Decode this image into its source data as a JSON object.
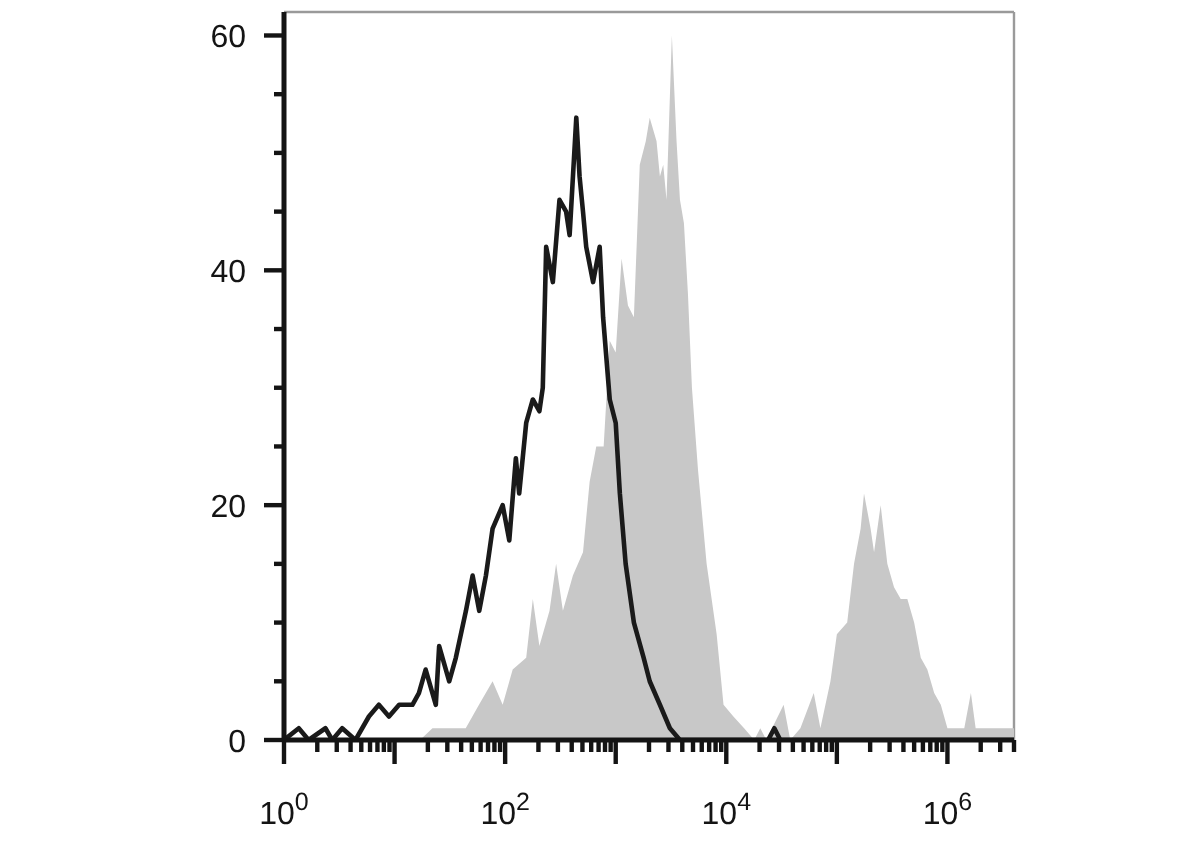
{
  "chart_data": {
    "type": "area",
    "log": "x",
    "xlim": [
      1,
      4000000
    ],
    "ylim": [
      0,
      62
    ],
    "xticks": [
      {
        "value": 1,
        "label": "10$^{0}$"
      },
      {
        "value": 2,
        "label": null
      },
      {
        "value": 3,
        "label": null
      },
      {
        "value": 4,
        "label": null
      },
      {
        "value": 5,
        "label": null
      },
      {
        "value": 6,
        "label": null
      },
      {
        "value": 7,
        "label": null
      },
      {
        "value": 8,
        "label": null
      },
      {
        "value": 9,
        "label": null
      },
      {
        "value": 10,
        "label": null
      },
      {
        "value": 20,
        "label": null
      },
      {
        "value": 30,
        "label": null
      },
      {
        "value": 40,
        "label": null
      },
      {
        "value": 50,
        "label": null
      },
      {
        "value": 60,
        "label": null
      },
      {
        "value": 70,
        "label": null
      },
      {
        "value": 80,
        "label": null
      },
      {
        "value": 90,
        "label": null
      },
      {
        "value": 100,
        "label": "10$^{2}$"
      },
      {
        "value": 200,
        "label": null
      },
      {
        "value": 300,
        "label": null
      },
      {
        "value": 400,
        "label": null
      },
      {
        "value": 500,
        "label": null
      },
      {
        "value": 600,
        "label": null
      },
      {
        "value": 700,
        "label": null
      },
      {
        "value": 800,
        "label": null
      },
      {
        "value": 900,
        "label": null
      },
      {
        "value": 1000,
        "label": null
      },
      {
        "value": 2000,
        "label": null
      },
      {
        "value": 3000,
        "label": null
      },
      {
        "value": 4000,
        "label": null
      },
      {
        "value": 5000,
        "label": null
      },
      {
        "value": 6000,
        "label": null
      },
      {
        "value": 7000,
        "label": null
      },
      {
        "value": 8000,
        "label": null
      },
      {
        "value": 9000,
        "label": null
      },
      {
        "value": 10000,
        "label": "10$^{4}$"
      },
      {
        "value": 20000,
        "label": null
      },
      {
        "value": 30000,
        "label": null
      },
      {
        "value": 40000,
        "label": null
      },
      {
        "value": 50000,
        "label": null
      },
      {
        "value": 60000,
        "label": null
      },
      {
        "value": 70000,
        "label": null
      },
      {
        "value": 80000,
        "label": null
      },
      {
        "value": 90000,
        "label": null
      },
      {
        "value": 100000,
        "label": null
      },
      {
        "value": 200000,
        "label": null
      },
      {
        "value": 300000,
        "label": null
      },
      {
        "value": 400000,
        "label": null
      },
      {
        "value": 500000,
        "label": null
      },
      {
        "value": 600000,
        "label": null
      },
      {
        "value": 700000,
        "label": null
      },
      {
        "value": 800000,
        "label": null
      },
      {
        "value": 900000,
        "label": null
      },
      {
        "value": 1000000,
        "label": "10$^{6}$"
      },
      {
        "value": 2000000,
        "label": null
      },
      {
        "value": 3000000,
        "label": null
      },
      {
        "value": 4000000,
        "label": null
      }
    ],
    "yticks": [
      0,
      {
        "value": 5,
        "label": null
      },
      {
        "value": 10,
        "label": null
      },
      {
        "value": 15,
        "label": null
      },
      20,
      {
        "value": 25,
        "label": null
      },
      {
        "value": 30,
        "label": null
      },
      {
        "value": 35,
        "label": null
      },
      40,
      {
        "value": 45,
        "label": null
      },
      {
        "value": 50,
        "label": null
      },
      {
        "value": 55,
        "label": null
      },
      60
    ],
    "series": [
      {
        "color": "#c8c8c8",
        "x": [
          1,
          17,
          22,
          33,
          44,
          58,
          77,
          95,
          117,
          155,
          178,
          204,
          252,
          289,
          333,
          410,
          506,
          581,
          667,
          778,
          883,
          1000,
          1130,
          1290,
          1460,
          1650,
          1870,
          2030,
          2340,
          2510,
          2690,
          2880,
          3220,
          3550,
          3810,
          4140,
          4500,
          4890,
          5550,
          6640,
          8180,
          9440,
          11600,
          14500,
          17900,
          20300,
          23000,
          33000,
          37900,
          46800,
          61800,
          71000,
          87500,
          100000,
          124000,
          143000,
          164000,
          176000,
          202000,
          217000,
          249000,
          286000,
          329000,
          378000,
          434000,
          500000,
          574000,
          658000,
          759000,
          871000,
          1000000,
          1220000,
          1420000,
          1630000,
          1800000,
          2280000,
          3060000,
          4000000
        ],
        "values": [
          0,
          0,
          1,
          1,
          1,
          3,
          5,
          3,
          6,
          7,
          12,
          8,
          11,
          15,
          11,
          14,
          16,
          22,
          25,
          25,
          34,
          33,
          41,
          37,
          36,
          49,
          51,
          53,
          51,
          48,
          49,
          46,
          60,
          51,
          46,
          44,
          38,
          30,
          23,
          15,
          9,
          3,
          2,
          1,
          0,
          1,
          0,
          3,
          0,
          1,
          4,
          1,
          5,
          9,
          10,
          15,
          18,
          21,
          18,
          16,
          20,
          15,
          13,
          12,
          12,
          10,
          7,
          6,
          4,
          3,
          1,
          1,
          1,
          4,
          1,
          1,
          1,
          1
        ]
      },
      {
        "type": "line",
        "color": "#1a1a1a",
        "x": [
          1,
          1.36,
          1.67,
          2.37,
          2.73,
          3.36,
          4.43,
          5.86,
          7.21,
          8.9,
          11,
          14.5,
          16.6,
          19.1,
          23.6,
          25.3,
          31.2,
          35.8,
          44.2,
          50.8,
          58.3,
          67,
          77,
          95,
          109,
          125,
          134,
          155,
          178,
          204,
          219,
          235,
          270,
          310,
          356,
          383,
          440,
          471,
          506,
          541,
          624,
          716,
          769,
          883,
          1000,
          1090,
          1230,
          1460,
          1790,
          2030,
          2510,
          3090,
          3810,
          23900,
          27200,
          30800,
          4000000
        ],
        "values": [
          0,
          1,
          0,
          1,
          0,
          1,
          0,
          2,
          3,
          2,
          3,
          3,
          4,
          6,
          3,
          8,
          5,
          7,
          11,
          14,
          11,
          14,
          18,
          20,
          17,
          24,
          21,
          27,
          29,
          28,
          30,
          42,
          39,
          46,
          45,
          43,
          53,
          48,
          45,
          42,
          39,
          42,
          36,
          29,
          27,
          21,
          15,
          10,
          7,
          5,
          3,
          1,
          0,
          0,
          1,
          0,
          0
        ]
      }
    ]
  }
}
